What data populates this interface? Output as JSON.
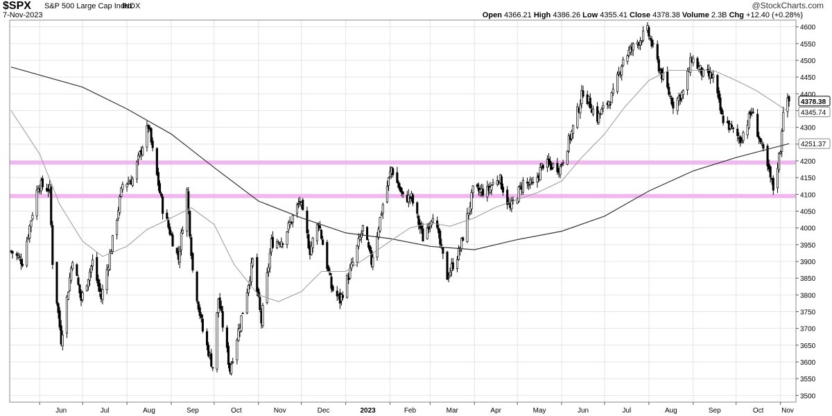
{
  "header": {
    "symbol": "$SPX",
    "description": "S&P 500 Large Cap Index",
    "exchange": "INDX",
    "date": "7-Nov-2023",
    "copyright": "@StockCharts.com",
    "quote": {
      "open_label": "Open",
      "open": "4366.21",
      "high_label": "High",
      "high": "4386.26",
      "low_label": "Low",
      "low": "4355.41",
      "close_label": "Close",
      "close": "4378.38",
      "volume_label": "Volume",
      "volume": "2.3B",
      "chg_label": "Chg",
      "chg": "+12.40 (+0.28%)"
    }
  },
  "colors": {
    "candle": "#000000",
    "ma_long": "#333333",
    "ma_short": "#a0a0a0",
    "support_band": "#f0b8ee",
    "grid": "#e4e4e4"
  },
  "chart_data": {
    "type": "candlestick",
    "ylim": [
      3480,
      4620
    ],
    "y_scale": "linear",
    "y_ticks": [
      3500,
      3550,
      3600,
      3650,
      3700,
      3750,
      3800,
      3850,
      3900,
      3950,
      4000,
      4050,
      4100,
      4150,
      4200,
      4250,
      4300,
      4350,
      4400,
      4450,
      4500,
      4550,
      4600
    ],
    "x_ticks": [
      "Jun",
      "Jul",
      "Aug",
      "Sep",
      "Oct",
      "Nov",
      "Dec",
      "2023",
      "Feb",
      "Mar",
      "Apr",
      "May",
      "Jun",
      "Jul",
      "Aug",
      "Sep",
      "Oct",
      "Nov"
    ],
    "x_tick_months": [
      "2022-06",
      "2022-07",
      "2022-08",
      "2022-09",
      "2022-10",
      "2022-11",
      "2022-12",
      "2023-01",
      "2023-02",
      "2023-03",
      "2023-04",
      "2023-05",
      "2023-06",
      "2023-07",
      "2023-08",
      "2023-09",
      "2023-10",
      "2023-11"
    ],
    "grid": "horizontal and vertical",
    "price_labels": [
      "4378.38",
      "4345.74",
      "4251.37"
    ],
    "support_lines": [
      4195,
      4095
    ],
    "close_path": [
      [
        "2022-05-12",
        3930
      ],
      [
        "2022-05-20",
        3900
      ],
      [
        "2022-05-31",
        4130
      ],
      [
        "2022-06-08",
        4115
      ],
      [
        "2022-06-10",
        3900
      ],
      [
        "2022-06-16",
        3666
      ],
      [
        "2022-06-24",
        3911
      ],
      [
        "2022-06-30",
        3785
      ],
      [
        "2022-07-08",
        3899
      ],
      [
        "2022-07-14",
        3790
      ],
      [
        "2022-07-22",
        3961
      ],
      [
        "2022-07-29",
        4130
      ],
      [
        "2022-08-05",
        4145
      ],
      [
        "2022-08-16",
        4305
      ],
      [
        "2022-08-19",
        4228
      ],
      [
        "2022-08-26",
        4058
      ],
      [
        "2022-09-06",
        3908
      ],
      [
        "2022-09-12",
        4110
      ],
      [
        "2022-09-16",
        3873
      ],
      [
        "2022-09-23",
        3693
      ],
      [
        "2022-09-30",
        3585
      ],
      [
        "2022-10-04",
        3790
      ],
      [
        "2022-10-12",
        3577
      ],
      [
        "2022-10-21",
        3752
      ],
      [
        "2022-10-28",
        3901
      ],
      [
        "2022-11-03",
        3720
      ],
      [
        "2022-11-10",
        3956
      ],
      [
        "2022-11-18",
        3965
      ],
      [
        "2022-11-30",
        4080
      ],
      [
        "2022-12-07",
        3933
      ],
      [
        "2022-12-13",
        4019
      ],
      [
        "2022-12-22",
        3822
      ],
      [
        "2022-12-28",
        3783
      ],
      [
        "2023-01-06",
        3895
      ],
      [
        "2023-01-13",
        3999
      ],
      [
        "2023-01-19",
        3898
      ],
      [
        "2023-01-27",
        4070
      ],
      [
        "2023-02-02",
        4179
      ],
      [
        "2023-02-10",
        4090
      ],
      [
        "2023-02-16",
        4090
      ],
      [
        "2023-02-24",
        3970
      ],
      [
        "2023-03-03",
        4045
      ],
      [
        "2023-03-13",
        3855
      ],
      [
        "2023-03-22",
        3936
      ],
      [
        "2023-03-31",
        4109
      ],
      [
        "2023-04-10",
        4110
      ],
      [
        "2023-04-18",
        4154
      ],
      [
        "2023-04-26",
        4055
      ],
      [
        "2023-05-05",
        4136
      ],
      [
        "2023-05-12",
        4124
      ],
      [
        "2023-05-19",
        4191
      ],
      [
        "2023-05-31",
        4180
      ],
      [
        "2023-06-09",
        4298
      ],
      [
        "2023-06-16",
        4409
      ],
      [
        "2023-06-26",
        4328
      ],
      [
        "2023-07-07",
        4398
      ],
      [
        "2023-07-14",
        4505
      ],
      [
        "2023-07-24",
        4554
      ],
      [
        "2023-07-31",
        4588
      ],
      [
        "2023-08-09",
        4467
      ],
      [
        "2023-08-18",
        4370
      ],
      [
        "2023-08-25",
        4405
      ],
      [
        "2023-08-31",
        4508
      ],
      [
        "2023-09-08",
        4457
      ],
      [
        "2023-09-15",
        4450
      ],
      [
        "2023-09-21",
        4330
      ],
      [
        "2023-09-29",
        4288
      ],
      [
        "2023-10-04",
        4263
      ],
      [
        "2023-10-12",
        4349
      ],
      [
        "2023-10-20",
        4224
      ],
      [
        "2023-10-27",
        4117
      ],
      [
        "2023-11-01",
        4237
      ],
      [
        "2023-11-03",
        4358
      ],
      [
        "2023-11-07",
        4378
      ]
    ],
    "moving_average_long": [
      [
        "2022-05-12",
        4480
      ],
      [
        "2022-07-01",
        4420
      ],
      [
        "2022-08-01",
        4355
      ],
      [
        "2022-09-01",
        4280
      ],
      [
        "2022-10-01",
        4180
      ],
      [
        "2022-11-01",
        4080
      ],
      [
        "2022-12-01",
        4030
      ],
      [
        "2023-01-01",
        3985
      ],
      [
        "2023-02-01",
        3968
      ],
      [
        "2023-03-01",
        3945
      ],
      [
        "2023-04-01",
        3935
      ],
      [
        "2023-05-01",
        3965
      ],
      [
        "2023-06-01",
        3990
      ],
      [
        "2023-07-01",
        4035
      ],
      [
        "2023-08-01",
        4110
      ],
      [
        "2023-09-01",
        4170
      ],
      [
        "2023-10-01",
        4210
      ],
      [
        "2023-11-07",
        4251.37
      ]
    ],
    "moving_average_short": [
      [
        "2022-05-12",
        4350
      ],
      [
        "2022-06-01",
        4220
      ],
      [
        "2022-06-15",
        4070
      ],
      [
        "2022-07-01",
        3960
      ],
      [
        "2022-07-15",
        3915
      ],
      [
        "2022-08-01",
        3945
      ],
      [
        "2022-08-15",
        3995
      ],
      [
        "2022-09-01",
        4030
      ],
      [
        "2022-09-15",
        4060
      ],
      [
        "2022-10-01",
        4010
      ],
      [
        "2022-10-15",
        3890
      ],
      [
        "2022-11-01",
        3800
      ],
      [
        "2022-11-15",
        3780
      ],
      [
        "2022-12-01",
        3810
      ],
      [
        "2022-12-15",
        3870
      ],
      [
        "2023-01-01",
        3870
      ],
      [
        "2023-01-15",
        3910
      ],
      [
        "2023-02-01",
        3960
      ],
      [
        "2023-02-15",
        4000
      ],
      [
        "2023-03-01",
        4015
      ],
      [
        "2023-03-15",
        4005
      ],
      [
        "2023-04-01",
        4030
      ],
      [
        "2023-04-15",
        4060
      ],
      [
        "2023-05-01",
        4085
      ],
      [
        "2023-05-15",
        4105
      ],
      [
        "2023-06-01",
        4140
      ],
      [
        "2023-06-15",
        4210
      ],
      [
        "2023-07-01",
        4280
      ],
      [
        "2023-07-15",
        4360
      ],
      [
        "2023-08-01",
        4440
      ],
      [
        "2023-08-15",
        4470
      ],
      [
        "2023-09-01",
        4470
      ],
      [
        "2023-09-15",
        4470
      ],
      [
        "2023-10-01",
        4440
      ],
      [
        "2023-10-15",
        4410
      ],
      [
        "2023-11-07",
        4345.74
      ]
    ],
    "date_range": [
      "2022-05-12",
      "2023-11-07"
    ]
  }
}
